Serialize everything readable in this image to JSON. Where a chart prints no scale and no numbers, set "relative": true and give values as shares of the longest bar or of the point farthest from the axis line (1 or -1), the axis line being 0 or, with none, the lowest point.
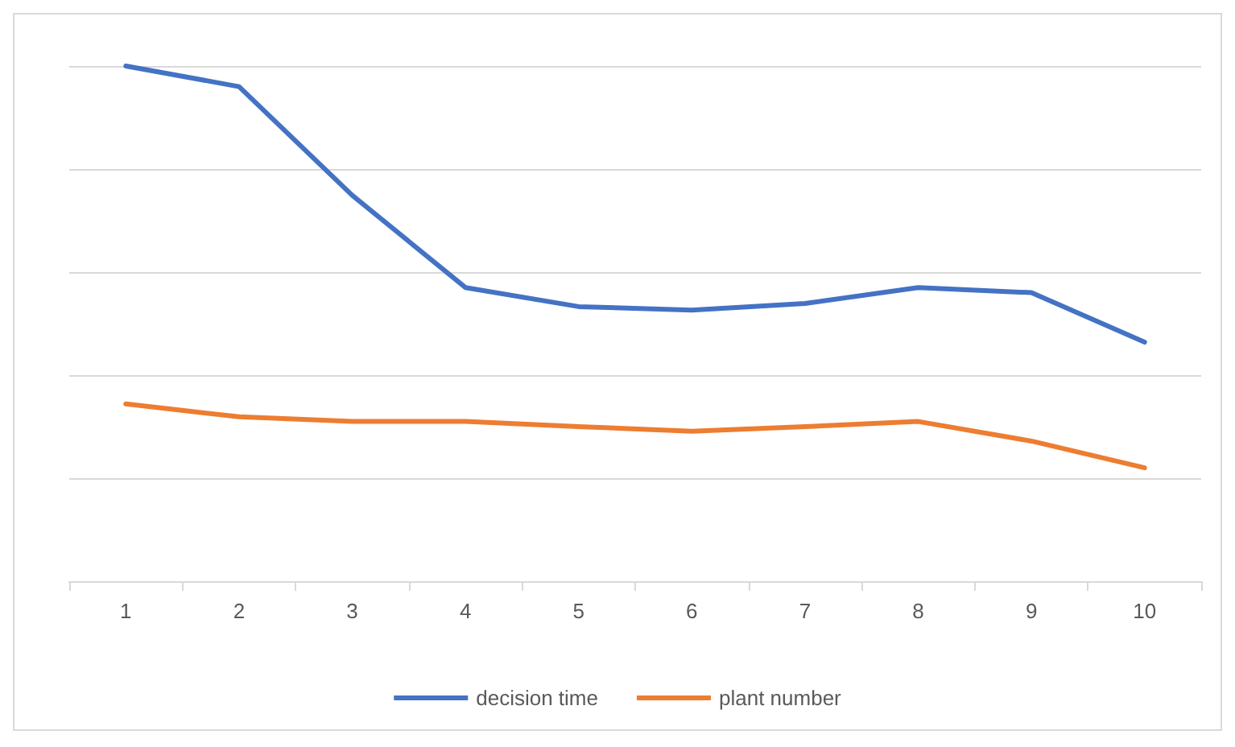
{
  "chart_data": {
    "type": "line",
    "relative": true,
    "categories": [
      "1",
      "2",
      "3",
      "4",
      "5",
      "6",
      "7",
      "8",
      "9",
      "10"
    ],
    "series": [
      {
        "name": "decision time",
        "color": "#4472c4",
        "values": [
          1,
          0.96,
          0.749,
          0.57,
          0.533,
          0.526,
          0.539,
          0.57,
          0.56,
          0.464
        ]
      },
      {
        "name": "plant number",
        "color": "#ed7d31",
        "values": [
          0.344,
          0.319,
          0.31,
          0.31,
          0.3,
          0.291,
          0.3,
          0.31,
          0.272,
          0.22
        ]
      }
    ],
    "grid": "y",
    "legend": "bottom",
    "marker": "none",
    "line_style": "solid"
  }
}
